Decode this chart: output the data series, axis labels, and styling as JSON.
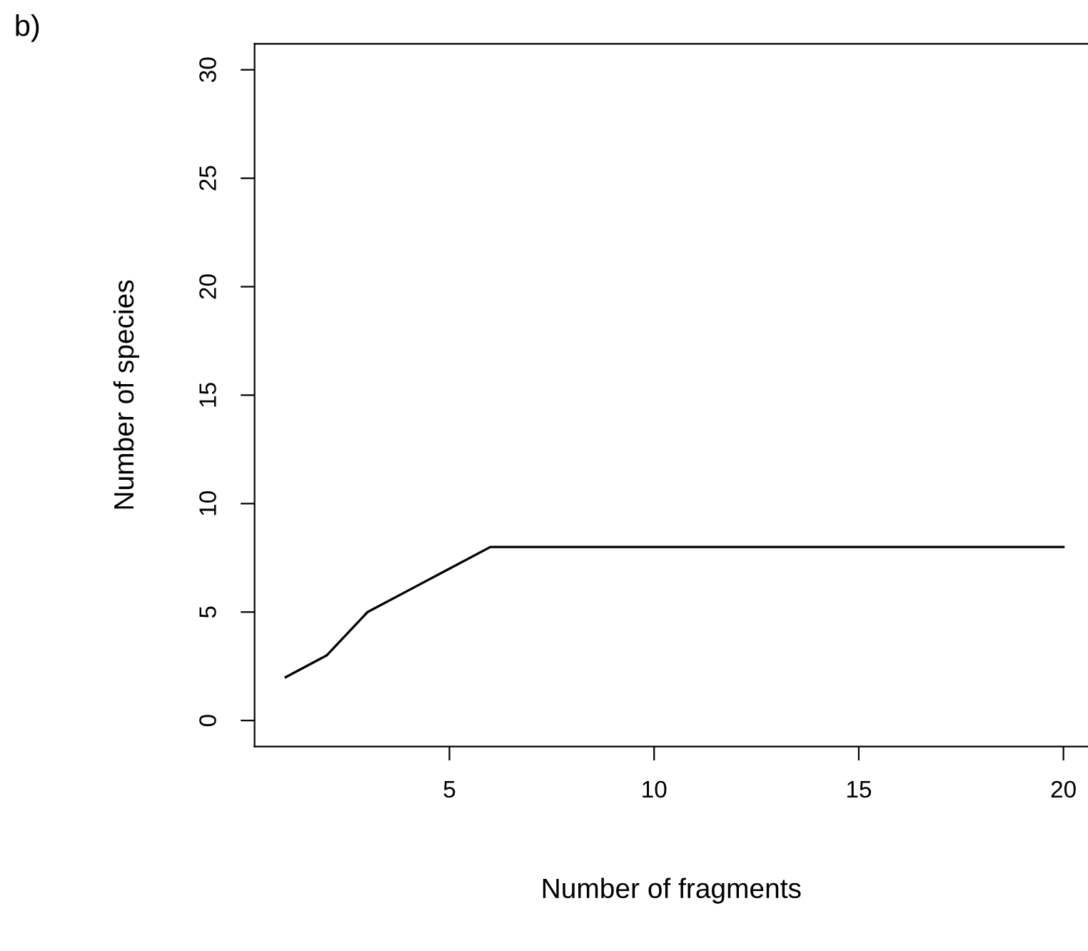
{
  "chart_data": {
    "type": "line",
    "xlabel": "Number of fragments",
    "ylabel": "Number of species",
    "annotations": [
      "b)"
    ],
    "x": [
      1,
      2,
      3,
      4,
      5,
      6,
      7,
      8,
      9,
      10,
      11,
      12,
      13,
      14,
      15,
      16,
      17,
      18,
      19,
      20
    ],
    "series": [
      {
        "color": "#000000",
        "values": [
          2,
          3,
          5,
          6,
          7,
          8,
          8,
          8,
          8,
          8,
          8,
          8,
          8,
          8,
          8,
          8,
          8,
          8,
          8,
          8
        ]
      }
    ],
    "xlim": [
      0.24,
      20.6
    ],
    "ylim": [
      -1.2,
      31.2
    ],
    "xticks": [
      5,
      10,
      15,
      20
    ],
    "yticks": [
      0,
      5,
      10,
      15,
      20,
      25,
      30
    ],
    "grid": false,
    "legend": false,
    "marker": "none",
    "line_style": "solid"
  }
}
